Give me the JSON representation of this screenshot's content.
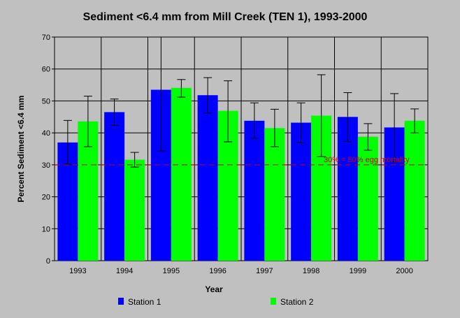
{
  "chart_data": {
    "type": "bar",
    "title": "Sediment <6.4 mm from Mill Creek (TEN 1), 1993-2000",
    "xlabel": "Year",
    "ylabel": "Percent Sediment <6.4 mm",
    "ylim": [
      0,
      70
    ],
    "yticks": [
      0,
      10,
      20,
      30,
      40,
      50,
      60,
      70
    ],
    "grid": true,
    "legend_position": "bottom",
    "categories": [
      "1993",
      "1994",
      "1995",
      "1996",
      "1997",
      "1998",
      "1999",
      "2000"
    ],
    "series": [
      {
        "name": "Station 1",
        "color": "#0000ff",
        "values": [
          37.0,
          46.5,
          53.5,
          51.8,
          43.8,
          43.2,
          45.0,
          41.7
        ],
        "error_low": [
          30.2,
          42.3,
          34.3,
          46.2,
          38.3,
          36.9,
          37.3,
          31.0
        ],
        "error_high": [
          43.9,
          50.6,
          72.6,
          57.3,
          49.4,
          49.4,
          52.6,
          52.3
        ]
      },
      {
        "name": "Station 2",
        "color": "#00ff00",
        "values": [
          43.6,
          31.6,
          54.1,
          46.9,
          41.5,
          45.4,
          38.8,
          43.8
        ],
        "error_low": [
          35.7,
          29.3,
          51.2,
          37.2,
          35.7,
          32.6,
          34.6,
          40.0
        ],
        "error_high": [
          51.5,
          33.9,
          56.7,
          56.3,
          47.4,
          58.2,
          42.9,
          47.5
        ]
      }
    ],
    "reference_line": {
      "value": 30,
      "label": "30% = 50% egg mortality",
      "color": "#cc0000"
    }
  }
}
